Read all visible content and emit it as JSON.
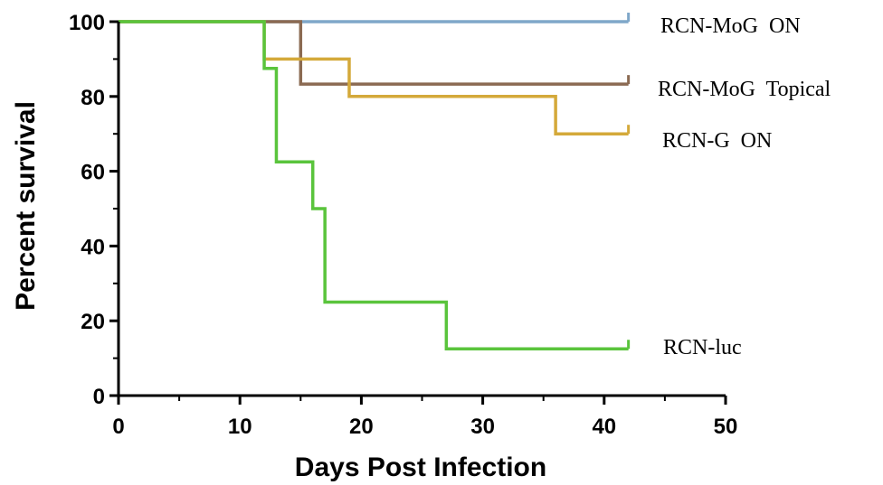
{
  "chart_data": {
    "type": "line",
    "title": "",
    "xlabel": "Days Post Infection",
    "ylabel": "Percent survival",
    "xlim": [
      0,
      50
    ],
    "ylim": [
      0,
      100
    ],
    "x_ticks": [
      0,
      10,
      20,
      30,
      40,
      50
    ],
    "y_ticks": [
      0,
      20,
      40,
      60,
      80,
      100
    ],
    "x_tick_labels": [
      "0",
      "10",
      "20",
      "30",
      "40",
      "50"
    ],
    "y_tick_labels": [
      "0",
      "20",
      "40",
      "60",
      "80",
      "100"
    ],
    "grid": false,
    "legend": "direct labels at right end of each curve",
    "series": [
      {
        "name": "RCN-MoG  ON",
        "color": "#7fa7c9",
        "x": [
          0,
          42
        ],
        "y": [
          100,
          100
        ]
      },
      {
        "name": "RCN-MoG  Topical",
        "color": "#8b6a52",
        "x": [
          0,
          15,
          15,
          42
        ],
        "y": [
          100,
          100,
          83.3,
          83.3
        ]
      },
      {
        "name": "RCN-G  ON",
        "color": "#d4a93a",
        "x": [
          0,
          12,
          12,
          19,
          19,
          36,
          36,
          42
        ],
        "y": [
          100,
          100,
          90,
          90,
          80,
          80,
          70,
          70
        ]
      },
      {
        "name": "RCN-luc",
        "color": "#5ac43c",
        "x": [
          0,
          12,
          12,
          13,
          13,
          16,
          16,
          17,
          17,
          27,
          27,
          42
        ],
        "y": [
          100,
          100,
          87.5,
          87.5,
          62.5,
          62.5,
          50,
          50,
          25,
          25,
          12.5,
          12.5
        ]
      }
    ]
  }
}
